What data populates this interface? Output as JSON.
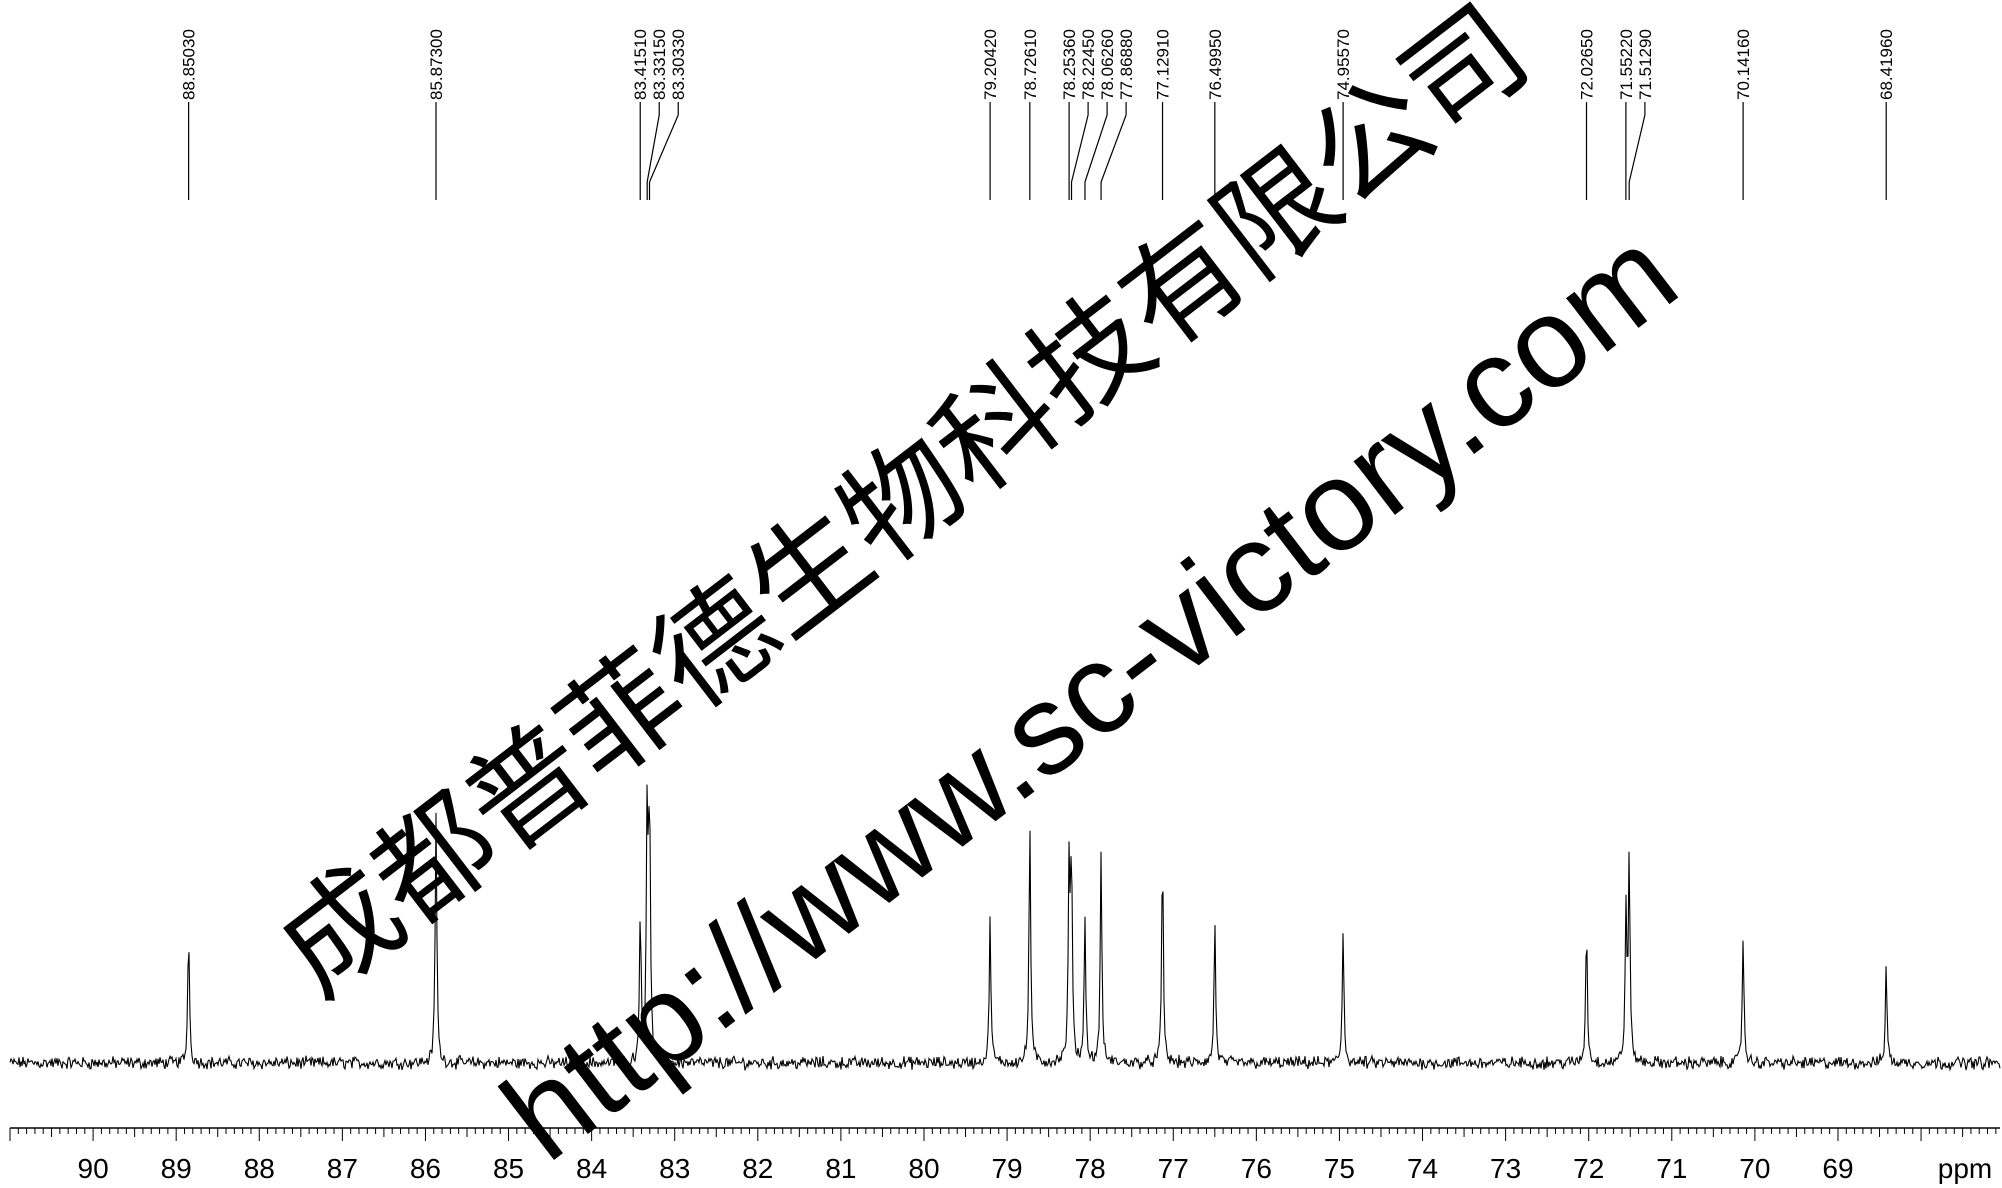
{
  "chart_data": {
    "type": "line",
    "title": "",
    "xlabel": "ppm",
    "ylabel": "",
    "xlim": [
      91.0,
      67.05
    ],
    "x_reversed": true,
    "grid": false,
    "ticks": [
      90,
      89,
      88,
      87,
      86,
      85,
      84,
      83,
      82,
      81,
      80,
      79,
      78,
      77,
      76,
      75,
      74,
      73,
      72,
      71,
      70,
      69
    ],
    "peaks": [
      {
        "ppm": 88.8503,
        "label": "88.85030",
        "height": 0.3
      },
      {
        "ppm": 85.873,
        "label": "85.87300",
        "height": 0.56
      },
      {
        "ppm": 83.4151,
        "label": "83.41510",
        "height": 0.33
      },
      {
        "ppm": 83.3315,
        "label": "83.33150",
        "height": 0.57
      },
      {
        "ppm": 83.3033,
        "label": "83.30330",
        "height": 0.57
      },
      {
        "ppm": 79.2042,
        "label": "79.20420",
        "height": 0.32
      },
      {
        "ppm": 78.7261,
        "label": "78.72610",
        "height": 0.54
      },
      {
        "ppm": 78.2536,
        "label": "78.25360",
        "height": 0.43
      },
      {
        "ppm": 78.2245,
        "label": "78.22450",
        "height": 0.45
      },
      {
        "ppm": 78.0626,
        "label": "78.06260",
        "height": 0.32
      },
      {
        "ppm": 77.8688,
        "label": "77.86880",
        "height": 0.46
      },
      {
        "ppm": 77.1291,
        "label": "77.12910",
        "height": 0.47
      },
      {
        "ppm": 76.4995,
        "label": "76.49950",
        "height": 0.31
      },
      {
        "ppm": 74.9557,
        "label": "74.95570",
        "height": 0.3
      },
      {
        "ppm": 72.0265,
        "label": "72.02650",
        "height": 0.31
      },
      {
        "ppm": 71.5522,
        "label": "71.55220",
        "height": 0.33
      },
      {
        "ppm": 71.5129,
        "label": "71.51290",
        "height": 0.46
      },
      {
        "ppm": 70.1416,
        "label": "70.14160",
        "height": 0.29
      },
      {
        "ppm": 68.4196,
        "label": "68.41960",
        "height": 0.22
      }
    ]
  },
  "watermark": {
    "company": "成都普菲德生物科技有限公司",
    "url": "http://www.sc-victory.com",
    "color": "#3cb371"
  }
}
